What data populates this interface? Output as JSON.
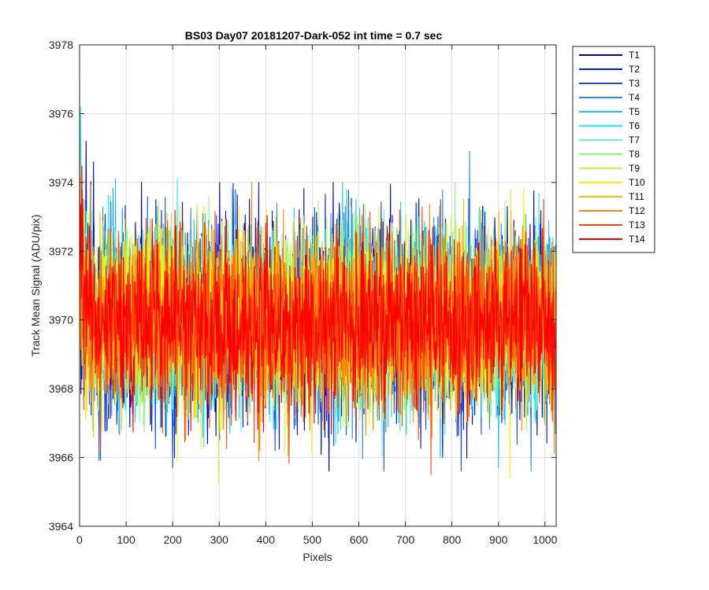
{
  "chart_data": {
    "type": "line",
    "title": "BS03 Day07 20181207-Dark-052 int time = 0.7 sec",
    "xlabel": "Pixels",
    "ylabel": "Track Mean Signal (ADU/pix)",
    "xlim": [
      0,
      1024
    ],
    "ylim": [
      3964,
      3978
    ],
    "xticks": [
      0,
      100,
      200,
      300,
      400,
      500,
      600,
      700,
      800,
      900,
      1000
    ],
    "yticks": [
      3964,
      3966,
      3968,
      3970,
      3972,
      3974,
      3976,
      3978
    ],
    "grid": true,
    "legend_position": "outside-top-right",
    "n_points": 1024,
    "series": [
      {
        "name": "T1",
        "color": "#0000b0",
        "mean": 3970.1,
        "spread": 1.45,
        "start": 3971.2,
        "peaks": [
          [
            0,
            3975.0
          ],
          [
            14,
            3975.2
          ],
          [
            301,
            3974.0
          ],
          [
            545,
            3974.0
          ],
          [
            690,
            3973.0
          ],
          [
            1010,
            3972.4
          ]
        ]
      },
      {
        "name": "T2",
        "color": "#0015dd",
        "mean": 3970.0,
        "spread": 1.4,
        "start": 3971.0,
        "peaks": [
          [
            30,
            3974.6
          ],
          [
            385,
            3974.0
          ],
          [
            730,
            3967.0
          ],
          [
            780,
            3966.0
          ]
        ]
      },
      {
        "name": "T3",
        "color": "#1a4fe6",
        "mean": 3970.0,
        "spread": 1.4,
        "start": 3971.4,
        "peaks": [
          [
            200,
            3965.7
          ],
          [
            420,
            3966.2
          ],
          [
            820,
            3965.6
          ]
        ]
      },
      {
        "name": "T4",
        "color": "#2b8bf0",
        "mean": 3970.0,
        "spread": 1.35,
        "start": 3971.5,
        "peaks": [
          [
            838,
            3974.9
          ],
          [
            970,
            3965.6
          ]
        ]
      },
      {
        "name": "T5",
        "color": "#1fc3f5",
        "mean": 3970.0,
        "spread": 1.35,
        "start": 3972.5,
        "peaks": [
          [
            0,
            3977.0
          ],
          [
            77,
            3974.1
          ],
          [
            565,
            3974.0
          ],
          [
            900,
            3965.7
          ]
        ]
      },
      {
        "name": "T6",
        "color": "#23f0ee",
        "mean": 3970.0,
        "spread": 1.3,
        "start": 3973.0,
        "peaks": [
          [
            2,
            3976.2
          ],
          [
            210,
            3974.1
          ],
          [
            775,
            3973.5
          ]
        ]
      },
      {
        "name": "T7",
        "color": "#6ef5c6",
        "mean": 3970.0,
        "spread": 1.3,
        "start": 3972.0,
        "peaks": [
          [
            100,
            3967.2
          ]
        ]
      },
      {
        "name": "T8",
        "color": "#8dfb83",
        "mean": 3970.0,
        "spread": 1.3,
        "start": 3971.8,
        "peaks": [
          [
            807,
            3974.0
          ]
        ]
      },
      {
        "name": "T9",
        "color": "#c4fb3b",
        "mean": 3970.0,
        "spread": 1.3,
        "start": 3971.5,
        "peaks": [
          [
            299,
            3965.2
          ],
          [
            926,
            3973.8
          ]
        ]
      },
      {
        "name": "T10",
        "color": "#f7ee12",
        "mean": 3970.0,
        "spread": 1.3,
        "start": 3971.6,
        "peaks": [
          [
            925,
            3965.4
          ]
        ]
      },
      {
        "name": "T11",
        "color": "#fbbc08",
        "mean": 3969.9,
        "spread": 1.3,
        "start": 3971.7,
        "peaks": [
          [
            30,
            3966.6
          ]
        ]
      },
      {
        "name": "T12",
        "color": "#fb8a0a",
        "mean": 3969.9,
        "spread": 1.3,
        "start": 3972.0,
        "peaks": [
          [
            370,
            3974.0
          ],
          [
            385,
            3965.9
          ]
        ]
      },
      {
        "name": "T13",
        "color": "#fb4a08",
        "mean": 3969.9,
        "spread": 1.3,
        "start": 3972.5,
        "peaks": [
          [
            45,
            3966.2
          ],
          [
            755,
            3965.5
          ]
        ]
      },
      {
        "name": "T14",
        "color": "#ff0000",
        "mean": 3969.9,
        "spread": 1.2,
        "start": 3972.8,
        "peaks": [
          [
            0,
            3975.3
          ]
        ]
      }
    ]
  }
}
